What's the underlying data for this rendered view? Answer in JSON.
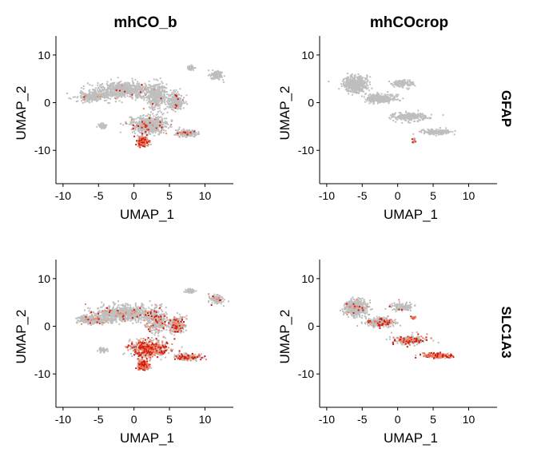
{
  "chart_data": {
    "type": "scatter",
    "columns": [
      "mhCO_b",
      "mhCOcrop"
    ],
    "rows": [
      "GFAP",
      "SLC1A3"
    ],
    "xlabel": "UMAP_1",
    "ylabel": "UMAP_2",
    "xlim": [
      -11,
      14
    ],
    "ylim": [
      -17,
      14
    ],
    "xticks": [
      -10,
      -5,
      0,
      5,
      10
    ],
    "yticks": [
      10,
      0,
      -10
    ],
    "colors": {
      "background_point": "#bebebe",
      "low_expr": "#f08060",
      "high_expr": "#d31a0a"
    },
    "panels": [
      {
        "column": "mhCO_b",
        "row": "GFAP",
        "clusters": [
          {
            "x": -1.5,
            "y": 2.8,
            "sx": 4.0,
            "sy": 1.6,
            "n": 700,
            "expressed_fraction": 0.01
          },
          {
            "x": -5.8,
            "y": 1.5,
            "sx": 2.2,
            "sy": 1.0,
            "n": 260,
            "expressed_fraction": 0.01
          },
          {
            "x": 3.0,
            "y": 1.5,
            "sx": 1.4,
            "sy": 2.6,
            "n": 320,
            "expressed_fraction": 0.02
          },
          {
            "x": 5.8,
            "y": 0.5,
            "sx": 1.2,
            "sy": 1.8,
            "n": 240,
            "expressed_fraction": 0.03
          },
          {
            "x": 2.0,
            "y": -4.5,
            "sx": 2.6,
            "sy": 1.8,
            "n": 560,
            "expressed_fraction": 0.05
          },
          {
            "x": 1.2,
            "y": -8.0,
            "sx": 0.8,
            "sy": 1.0,
            "n": 200,
            "expressed_fraction": 0.6
          },
          {
            "x": 7.5,
            "y": -6.3,
            "sx": 1.6,
            "sy": 0.6,
            "n": 180,
            "expressed_fraction": 0.05
          },
          {
            "x": 11.5,
            "y": 5.8,
            "sx": 0.8,
            "sy": 0.9,
            "n": 130,
            "expressed_fraction": 0.0
          },
          {
            "x": 7.8,
            "y": 7.5,
            "sx": 0.6,
            "sy": 0.4,
            "n": 50,
            "expressed_fraction": 0.0
          },
          {
            "x": -4.5,
            "y": -4.8,
            "sx": 0.6,
            "sy": 0.5,
            "n": 50,
            "expressed_fraction": 0.0
          },
          {
            "x": 1.5,
            "y": -4.8,
            "sx": 0.5,
            "sy": 0.5,
            "n": 60,
            "expressed_fraction": 0.08
          }
        ]
      },
      {
        "column": "mhCOcrop",
        "row": "GFAP",
        "clusters": [
          {
            "x": -6.0,
            "y": 4.0,
            "sx": 1.6,
            "sy": 1.6,
            "n": 520,
            "expressed_fraction": 0.0
          },
          {
            "x": -2.5,
            "y": 1.0,
            "sx": 2.0,
            "sy": 1.0,
            "n": 300,
            "expressed_fraction": 0.0
          },
          {
            "x": 1.5,
            "y": -2.8,
            "sx": 2.5,
            "sy": 0.9,
            "n": 220,
            "expressed_fraction": 0.01
          },
          {
            "x": 5.5,
            "y": -6.0,
            "sx": 2.0,
            "sy": 0.5,
            "n": 180,
            "expressed_fraction": 0.0
          },
          {
            "x": 0.5,
            "y": 4.2,
            "sx": 1.5,
            "sy": 0.8,
            "n": 130,
            "expressed_fraction": 0.0
          },
          {
            "x": 2.2,
            "y": -7.8,
            "sx": 0.3,
            "sy": 0.6,
            "n": 20,
            "expressed_fraction": 0.5
          }
        ]
      },
      {
        "column": "mhCO_b",
        "row": "SLC1A3",
        "clusters": [
          {
            "x": -1.5,
            "y": 2.8,
            "sx": 4.0,
            "sy": 1.6,
            "n": 700,
            "expressed_fraction": 0.05
          },
          {
            "x": -5.8,
            "y": 1.5,
            "sx": 2.2,
            "sy": 1.0,
            "n": 260,
            "expressed_fraction": 0.05
          },
          {
            "x": 3.0,
            "y": 1.5,
            "sx": 1.4,
            "sy": 2.6,
            "n": 320,
            "expressed_fraction": 0.15
          },
          {
            "x": 5.8,
            "y": 0.5,
            "sx": 1.2,
            "sy": 1.8,
            "n": 240,
            "expressed_fraction": 0.25
          },
          {
            "x": 2.0,
            "y": -4.5,
            "sx": 2.6,
            "sy": 1.8,
            "n": 560,
            "expressed_fraction": 0.5
          },
          {
            "x": 1.2,
            "y": -8.0,
            "sx": 0.8,
            "sy": 1.0,
            "n": 200,
            "expressed_fraction": 0.6
          },
          {
            "x": 7.5,
            "y": -6.3,
            "sx": 1.6,
            "sy": 0.6,
            "n": 180,
            "expressed_fraction": 0.35
          },
          {
            "x": 11.5,
            "y": 5.8,
            "sx": 0.8,
            "sy": 0.9,
            "n": 130,
            "expressed_fraction": 0.05
          },
          {
            "x": 7.8,
            "y": 7.5,
            "sx": 0.6,
            "sy": 0.4,
            "n": 50,
            "expressed_fraction": 0.0
          },
          {
            "x": -4.5,
            "y": -4.8,
            "sx": 0.6,
            "sy": 0.5,
            "n": 50,
            "expressed_fraction": 0.0
          },
          {
            "x": 1.5,
            "y": -4.8,
            "sx": 0.5,
            "sy": 0.5,
            "n": 60,
            "expressed_fraction": 0.5
          }
        ]
      },
      {
        "column": "mhCOcrop",
        "row": "SLC1A3",
        "clusters": [
          {
            "x": -6.0,
            "y": 4.0,
            "sx": 1.6,
            "sy": 1.6,
            "n": 520,
            "expressed_fraction": 0.03
          },
          {
            "x": -2.5,
            "y": 1.0,
            "sx": 2.0,
            "sy": 1.0,
            "n": 300,
            "expressed_fraction": 0.1
          },
          {
            "x": 1.5,
            "y": -2.8,
            "sx": 2.5,
            "sy": 0.9,
            "n": 220,
            "expressed_fraction": 0.35
          },
          {
            "x": 5.5,
            "y": -6.0,
            "sx": 2.0,
            "sy": 0.5,
            "n": 180,
            "expressed_fraction": 0.7
          },
          {
            "x": 0.5,
            "y": 4.2,
            "sx": 1.5,
            "sy": 0.8,
            "n": 130,
            "expressed_fraction": 0.02
          },
          {
            "x": 2.2,
            "y": 2.0,
            "sx": 0.4,
            "sy": 0.3,
            "n": 15,
            "expressed_fraction": 0.8
          }
        ]
      }
    ]
  }
}
